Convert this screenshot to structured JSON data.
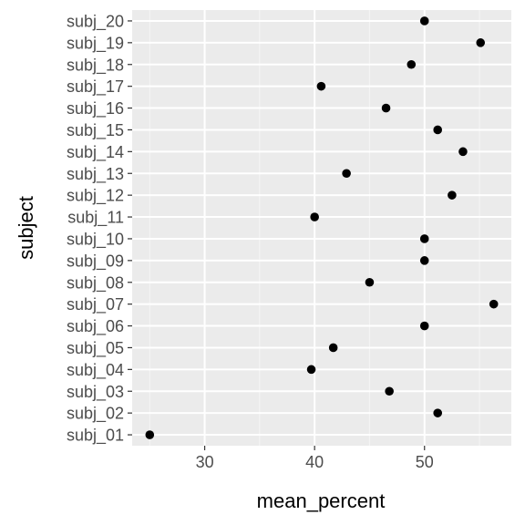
{
  "chart_data": {
    "type": "scatter",
    "xlabel": "mean_percent",
    "ylabel": "subject",
    "xlim": [
      23.4,
      57.9
    ],
    "x_ticks": [
      30,
      40,
      50
    ],
    "x_tick_labels": [
      "30",
      "40",
      "50"
    ],
    "x_minor_ticks": [
      25,
      35,
      45,
      55
    ],
    "grid": true,
    "categories": [
      "subj_01",
      "subj_02",
      "subj_03",
      "subj_04",
      "subj_05",
      "subj_06",
      "subj_07",
      "subj_08",
      "subj_09",
      "subj_10",
      "subj_11",
      "subj_12",
      "subj_13",
      "subj_14",
      "subj_15",
      "subj_16",
      "subj_17",
      "subj_18",
      "subj_19",
      "subj_20"
    ],
    "values": [
      25.0,
      51.2,
      46.8,
      39.7,
      41.7,
      50.0,
      56.3,
      45.0,
      50.0,
      50.0,
      40.0,
      52.5,
      42.9,
      53.5,
      51.2,
      46.5,
      40.6,
      48.8,
      55.1,
      50.0
    ],
    "colors": {
      "panel": "#ebebeb",
      "grid_major": "#ffffff",
      "grid_minor": "#f5f5f5",
      "point": "#000000",
      "tick": "#333333"
    }
  }
}
